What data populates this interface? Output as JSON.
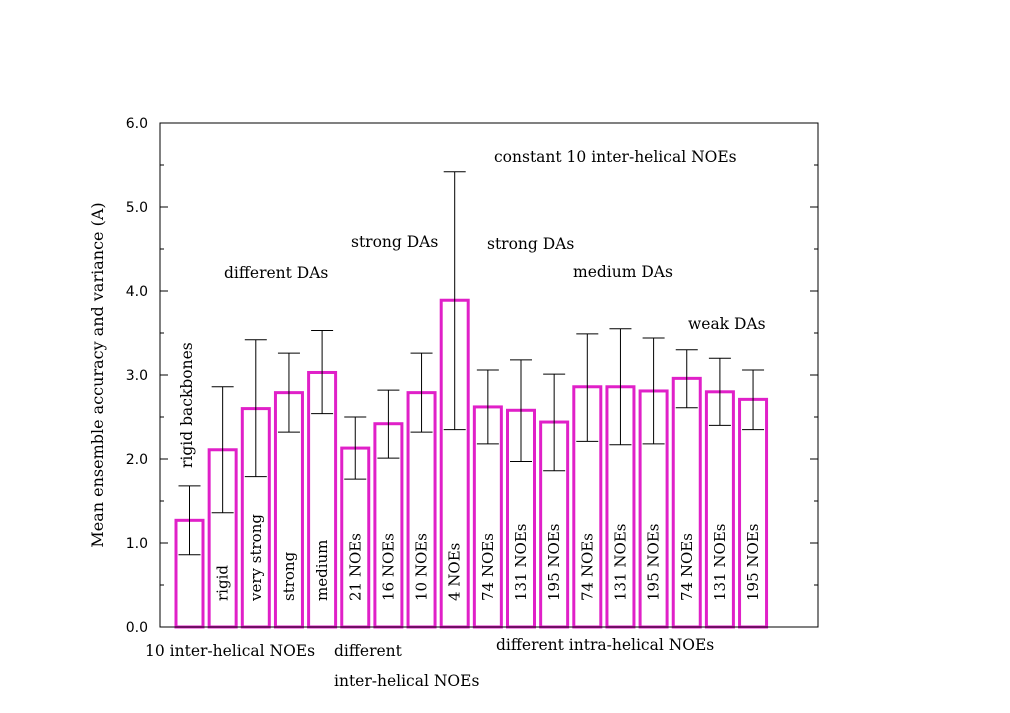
{
  "chart_data": {
    "type": "bar",
    "title": "",
    "xlabel": "",
    "ylabel": "Mean ensemble accuracy and variance (A)",
    "ylim": [
      0,
      6
    ],
    "yticks": [
      "0.0",
      "1.0",
      "2.0",
      "3.0",
      "4.0",
      "5.0",
      "6.0"
    ],
    "grid": false,
    "colors": {
      "bar": "#e020c8",
      "error": "#000000",
      "axis": "#000000"
    },
    "bars": [
      {
        "label": "",
        "value": 1.27,
        "err_low": 0.86,
        "err_high": 1.68
      },
      {
        "label": "rigid",
        "value": 2.11,
        "err_low": 1.36,
        "err_high": 2.86
      },
      {
        "label": "very strong",
        "value": 2.6,
        "err_low": 1.79,
        "err_high": 3.42
      },
      {
        "label": "strong",
        "value": 2.79,
        "err_low": 2.32,
        "err_high": 3.26
      },
      {
        "label": "medium",
        "value": 3.03,
        "err_low": 2.54,
        "err_high": 3.53
      },
      {
        "label": "21 NOEs",
        "value": 2.13,
        "err_low": 1.76,
        "err_high": 2.5
      },
      {
        "label": "16 NOEs",
        "value": 2.42,
        "err_low": 2.01,
        "err_high": 2.82
      },
      {
        "label": "10 NOEs",
        "value": 2.79,
        "err_low": 2.32,
        "err_high": 3.26
      },
      {
        "label": "4 NOEs",
        "value": 3.89,
        "err_low": 2.35,
        "err_high": 5.42
      },
      {
        "label": "74 NOEs",
        "value": 2.62,
        "err_low": 2.18,
        "err_high": 3.06
      },
      {
        "label": "131 NOEs",
        "value": 2.58,
        "err_low": 1.97,
        "err_high": 3.18
      },
      {
        "label": "195 NOEs",
        "value": 2.44,
        "err_low": 1.86,
        "err_high": 3.01
      },
      {
        "label": "74 NOEs",
        "value": 2.86,
        "err_low": 2.21,
        "err_high": 3.49
      },
      {
        "label": "131 NOEs",
        "value": 2.86,
        "err_low": 2.17,
        "err_high": 3.55
      },
      {
        "label": "195 NOEs",
        "value": 2.81,
        "err_low": 2.18,
        "err_high": 3.44
      },
      {
        "label": "74 NOEs",
        "value": 2.96,
        "err_low": 2.61,
        "err_high": 3.3
      },
      {
        "label": "131 NOEs",
        "value": 2.8,
        "err_low": 2.4,
        "err_high": 3.2
      },
      {
        "label": "195 NOEs",
        "value": 2.71,
        "err_low": 2.35,
        "err_high": 3.06
      }
    ],
    "annotations": {
      "rigid_backbones": "rigid backbones",
      "different_das": "different DAs",
      "strong_das_1": "strong DAs",
      "constant_noes": "constant 10 inter-helical NOEs",
      "strong_das_2": "strong DAs",
      "medium_das": "medium DAs",
      "weak_das": "weak DAs",
      "ten_inter_helical": "10 inter-helical NOEs",
      "different": "different",
      "inter_helical": "inter-helical NOEs",
      "different_intra": "different intra-helical NOEs"
    }
  }
}
